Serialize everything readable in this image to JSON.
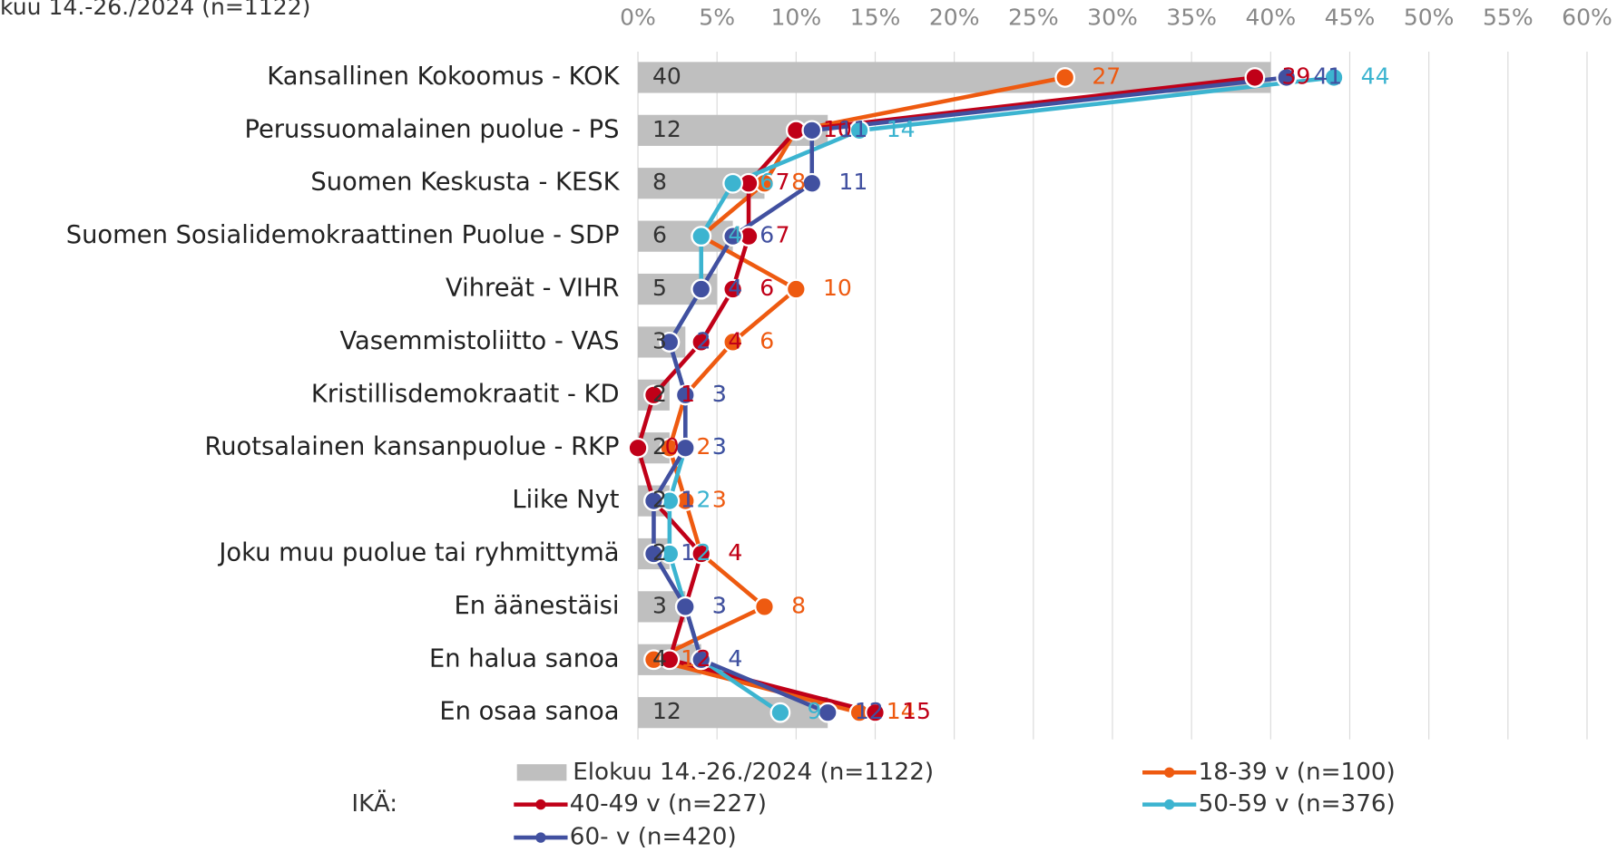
{
  "chart_data": {
    "type": "bar-line",
    "title": "kuu 14.-26./2024 (n=1122)",
    "legend_title": "IKÄ:",
    "categories": [
      "Kansallinen Kokoomus - KOK",
      "Perussuomalainen puolue - PS",
      "Suomen Keskusta - KESK",
      "Suomen Sosialidemokraattinen Puolue - SDP",
      "Vihreät - VIHR",
      "Vasemmistoliitto - VAS",
      "Kristillisdemokraatit - KD",
      "Ruotsalainen kansanpuolue - RKP",
      "Liike Nyt",
      "Joku muu puolue tai ryhmittymä",
      "En äänestäisi",
      "En halua sanoa",
      "En osaa sanoa"
    ],
    "xlim": [
      0,
      60
    ],
    "xticks": [
      {
        "value": 0,
        "label": "0%"
      },
      {
        "value": 5,
        "label": "5%"
      },
      {
        "value": 10,
        "label": "10%"
      },
      {
        "value": 15,
        "label": "15%"
      },
      {
        "value": 20,
        "label": "20%"
      },
      {
        "value": 25,
        "label": "25%"
      },
      {
        "value": 30,
        "label": "30%"
      },
      {
        "value": 35,
        "label": "35%"
      },
      {
        "value": 40,
        "label": "40%"
      },
      {
        "value": 45,
        "label": "45%"
      },
      {
        "value": 50,
        "label": "50%"
      },
      {
        "value": 55,
        "label": "55%"
      },
      {
        "value": 60,
        "label": "60%"
      }
    ],
    "grid": true,
    "series": [
      {
        "name": "Elokuu 14.-26./2024 (n=1122)",
        "type": "bar",
        "color": "#bfbfbf",
        "values": [
          40,
          12,
          8,
          6,
          5,
          3,
          2,
          2,
          2,
          2,
          3,
          4,
          12
        ]
      },
      {
        "name": "18-39 v (n=100)",
        "type": "line",
        "color": "#ee5a10",
        "values": [
          27,
          10,
          8,
          4,
          10,
          6,
          3,
          2,
          3,
          4,
          8,
          1,
          14
        ]
      },
      {
        "name": "40-49 v (n=227)",
        "type": "line",
        "color": "#c00018",
        "values": [
          39,
          10,
          7,
          7,
          6,
          4,
          1,
          0,
          1,
          4,
          3,
          2,
          15
        ]
      },
      {
        "name": "50-59 v (n=376)",
        "type": "line",
        "color": "#3cb4d0",
        "values": [
          44,
          14,
          6,
          4,
          4,
          2,
          3,
          3,
          2,
          2,
          3,
          4,
          9
        ]
      },
      {
        "name": "60- v (n=420)",
        "type": "line",
        "color": "#4150a0",
        "values": [
          41,
          11,
          11,
          6,
          4,
          2,
          3,
          3,
          1,
          1,
          3,
          4,
          12
        ]
      }
    ]
  }
}
